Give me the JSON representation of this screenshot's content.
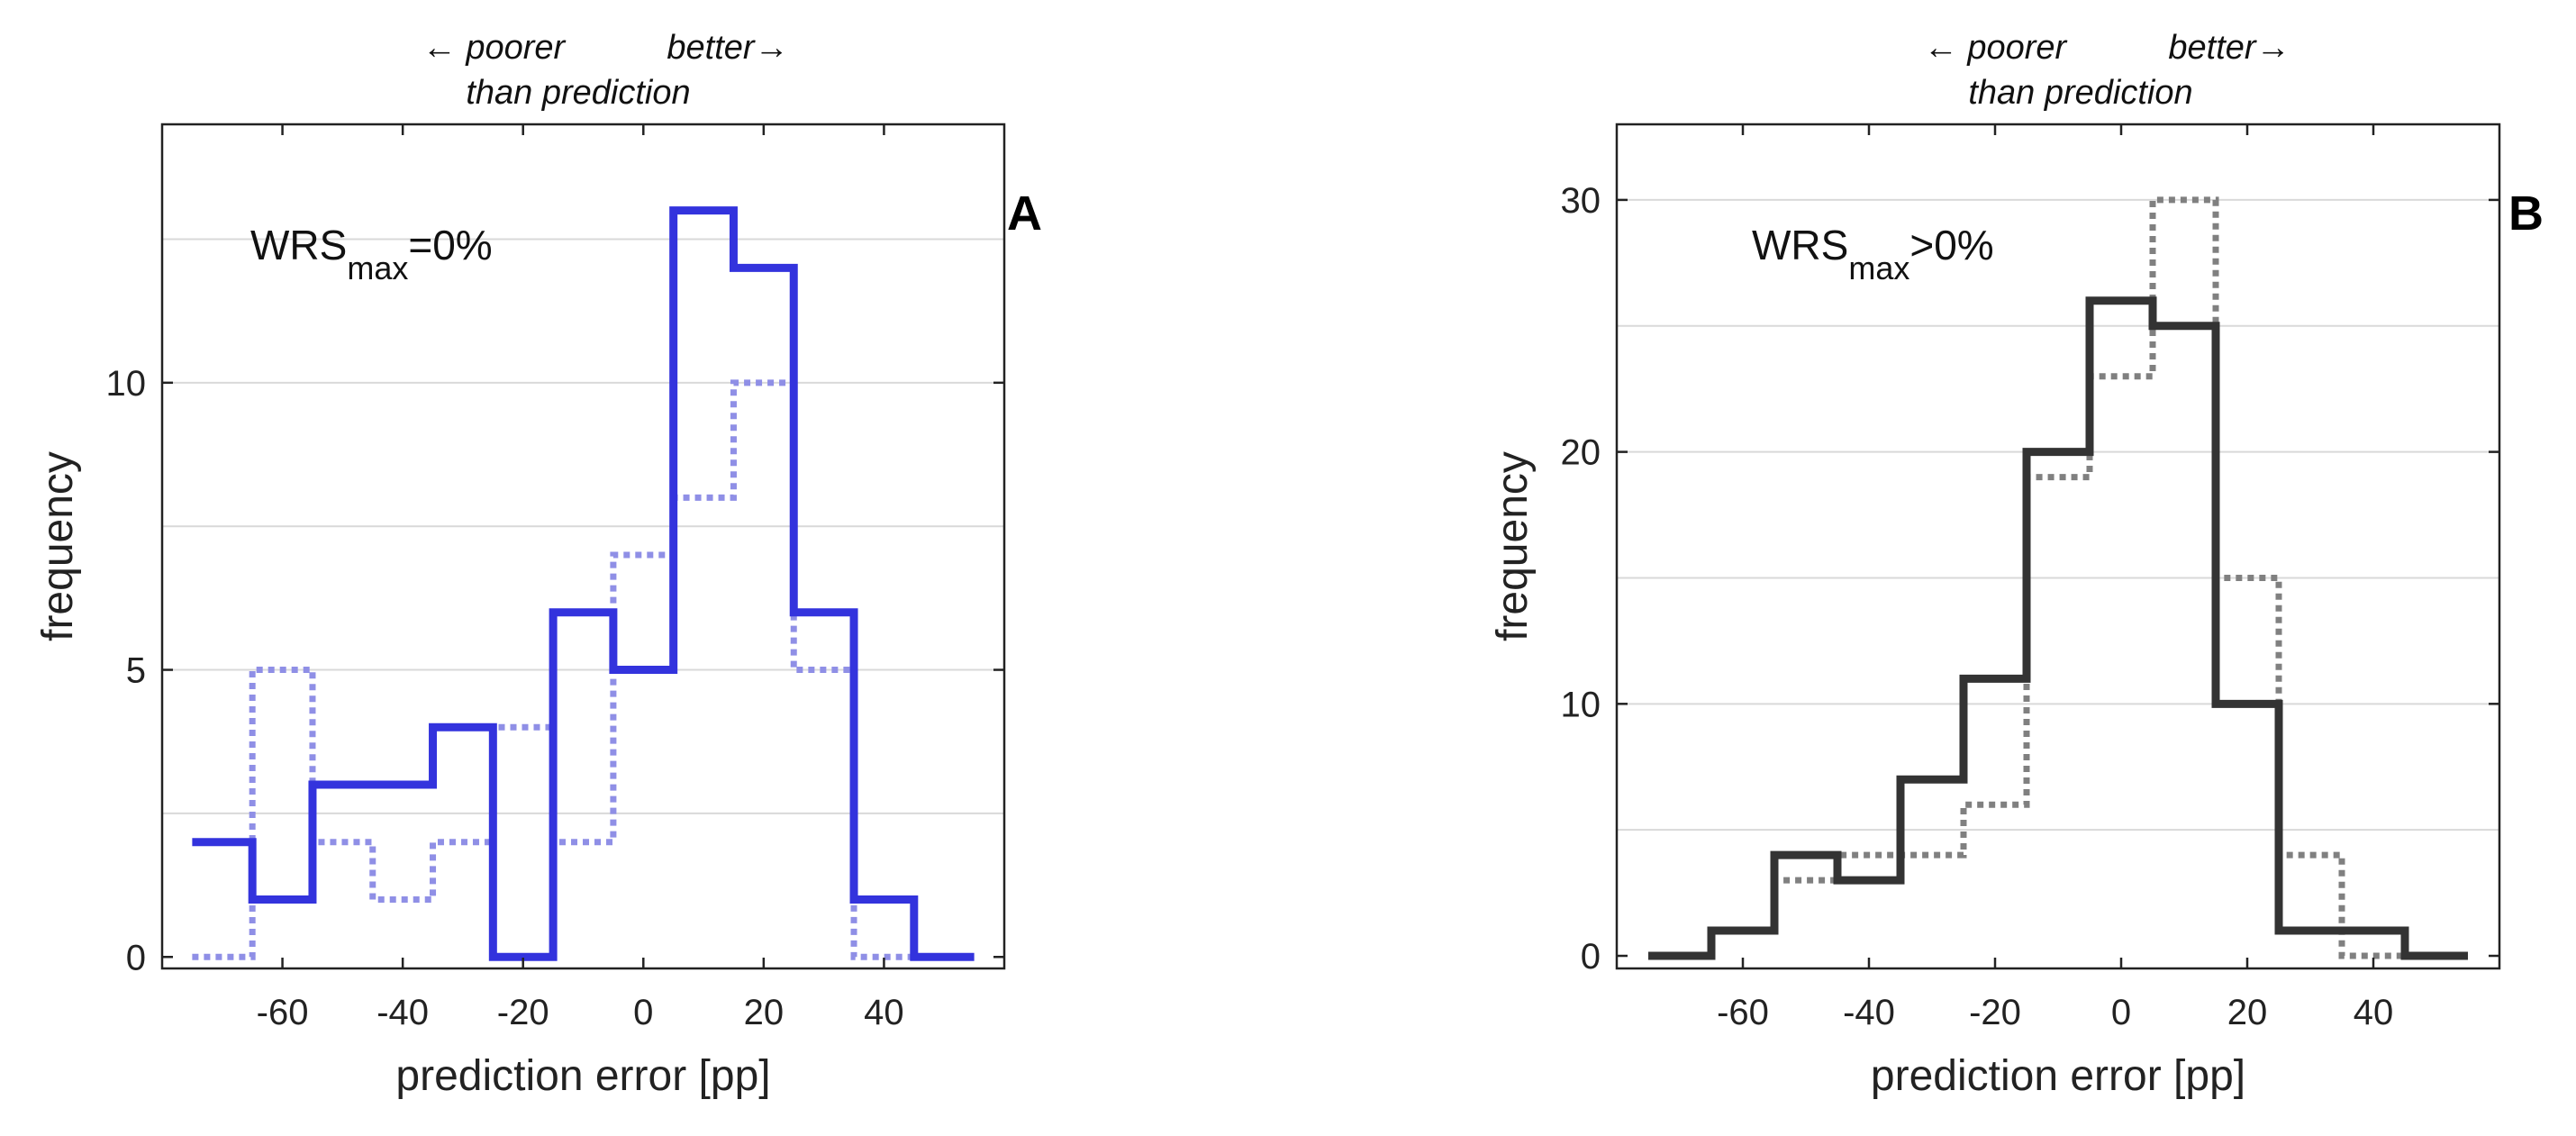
{
  "chart_data": [
    {
      "type": "histogram",
      "panel_label": "A",
      "annotation": {
        "main": "WRS",
        "sub": "max",
        "suffix": "=0%"
      },
      "top_hint": {
        "left": "← poorer",
        "right": "better→",
        "bottom": "than prediction"
      },
      "xlabel": "prediction error [pp]",
      "ylabel": "frequency",
      "xlim": [
        -80,
        60
      ],
      "ylim": [
        -0.2,
        14.5
      ],
      "xticks": [
        -60,
        -40,
        -20,
        0,
        20,
        40
      ],
      "yticks": [
        0,
        5,
        10
      ],
      "grid": "horizontal",
      "bin_edges": [
        -75,
        -65,
        -55,
        -45,
        -35,
        -25,
        -15,
        -5,
        5,
        15,
        25,
        35,
        45,
        55
      ],
      "series": [
        {
          "style": "solid",
          "color": "#3333dd",
          "values": [
            2,
            1,
            3,
            3,
            4,
            0,
            6,
            5,
            13,
            12,
            6,
            1,
            0
          ]
        },
        {
          "style": "dotted",
          "color": "#8f8fe6",
          "values": [
            0,
            5,
            2,
            1,
            2,
            4,
            2,
            7,
            8,
            10,
            5,
            0,
            0
          ]
        }
      ]
    },
    {
      "type": "histogram",
      "panel_label": "B",
      "annotation": {
        "main": "WRS",
        "sub": "max",
        "suffix": ">0%"
      },
      "top_hint": {
        "left": "← poorer",
        "right": "better→",
        "bottom": "than prediction"
      },
      "xlabel": "prediction error [pp]",
      "ylabel": "frequency",
      "xlim": [
        -80,
        60
      ],
      "ylim": [
        -0.5,
        33
      ],
      "xticks": [
        -60,
        -40,
        -20,
        0,
        20,
        40
      ],
      "yticks": [
        0,
        10,
        20,
        30
      ],
      "grid": "horizontal",
      "bin_edges": [
        -75,
        -65,
        -55,
        -45,
        -35,
        -25,
        -15,
        -5,
        5,
        15,
        25,
        35,
        45,
        55
      ],
      "series": [
        {
          "style": "solid",
          "color": "#333333",
          "values": [
            0,
            1,
            4,
            3,
            7,
            11,
            20,
            26,
            25,
            10,
            1,
            1,
            0
          ]
        },
        {
          "style": "dotted",
          "color": "#808080",
          "values": [
            0,
            1,
            3,
            4,
            4,
            6,
            19,
            23,
            30,
            15,
            4,
            0,
            0
          ]
        }
      ]
    }
  ]
}
